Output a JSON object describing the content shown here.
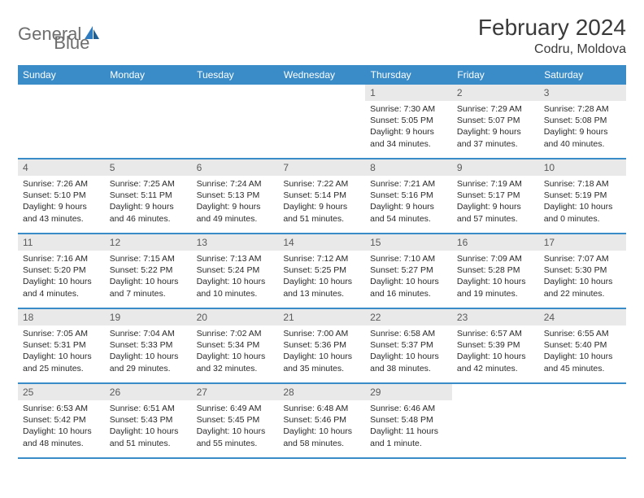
{
  "logo": {
    "text_a": "General",
    "text_b": "Blue"
  },
  "title": "February 2024",
  "location": "Codru, Moldova",
  "colors": {
    "header_bg": "#3a8cc9",
    "header_text": "#ffffff",
    "daynum_bg": "#e9e9e9",
    "daynum_text": "#5a5a5a",
    "body_text": "#2a2a2a",
    "border": "#3a8cc9",
    "logo_gray": "#6e6e6e",
    "logo_blue": "#2f7bbf"
  },
  "weekdays": [
    "Sunday",
    "Monday",
    "Tuesday",
    "Wednesday",
    "Thursday",
    "Friday",
    "Saturday"
  ],
  "weeks": [
    [
      null,
      null,
      null,
      null,
      {
        "n": "1",
        "sr": "Sunrise: 7:30 AM",
        "ss": "Sunset: 5:05 PM",
        "dl": "Daylight: 9 hours and 34 minutes."
      },
      {
        "n": "2",
        "sr": "Sunrise: 7:29 AM",
        "ss": "Sunset: 5:07 PM",
        "dl": "Daylight: 9 hours and 37 minutes."
      },
      {
        "n": "3",
        "sr": "Sunrise: 7:28 AM",
        "ss": "Sunset: 5:08 PM",
        "dl": "Daylight: 9 hours and 40 minutes."
      }
    ],
    [
      {
        "n": "4",
        "sr": "Sunrise: 7:26 AM",
        "ss": "Sunset: 5:10 PM",
        "dl": "Daylight: 9 hours and 43 minutes."
      },
      {
        "n": "5",
        "sr": "Sunrise: 7:25 AM",
        "ss": "Sunset: 5:11 PM",
        "dl": "Daylight: 9 hours and 46 minutes."
      },
      {
        "n": "6",
        "sr": "Sunrise: 7:24 AM",
        "ss": "Sunset: 5:13 PM",
        "dl": "Daylight: 9 hours and 49 minutes."
      },
      {
        "n": "7",
        "sr": "Sunrise: 7:22 AM",
        "ss": "Sunset: 5:14 PM",
        "dl": "Daylight: 9 hours and 51 minutes."
      },
      {
        "n": "8",
        "sr": "Sunrise: 7:21 AM",
        "ss": "Sunset: 5:16 PM",
        "dl": "Daylight: 9 hours and 54 minutes."
      },
      {
        "n": "9",
        "sr": "Sunrise: 7:19 AM",
        "ss": "Sunset: 5:17 PM",
        "dl": "Daylight: 9 hours and 57 minutes."
      },
      {
        "n": "10",
        "sr": "Sunrise: 7:18 AM",
        "ss": "Sunset: 5:19 PM",
        "dl": "Daylight: 10 hours and 0 minutes."
      }
    ],
    [
      {
        "n": "11",
        "sr": "Sunrise: 7:16 AM",
        "ss": "Sunset: 5:20 PM",
        "dl": "Daylight: 10 hours and 4 minutes."
      },
      {
        "n": "12",
        "sr": "Sunrise: 7:15 AM",
        "ss": "Sunset: 5:22 PM",
        "dl": "Daylight: 10 hours and 7 minutes."
      },
      {
        "n": "13",
        "sr": "Sunrise: 7:13 AM",
        "ss": "Sunset: 5:24 PM",
        "dl": "Daylight: 10 hours and 10 minutes."
      },
      {
        "n": "14",
        "sr": "Sunrise: 7:12 AM",
        "ss": "Sunset: 5:25 PM",
        "dl": "Daylight: 10 hours and 13 minutes."
      },
      {
        "n": "15",
        "sr": "Sunrise: 7:10 AM",
        "ss": "Sunset: 5:27 PM",
        "dl": "Daylight: 10 hours and 16 minutes."
      },
      {
        "n": "16",
        "sr": "Sunrise: 7:09 AM",
        "ss": "Sunset: 5:28 PM",
        "dl": "Daylight: 10 hours and 19 minutes."
      },
      {
        "n": "17",
        "sr": "Sunrise: 7:07 AM",
        "ss": "Sunset: 5:30 PM",
        "dl": "Daylight: 10 hours and 22 minutes."
      }
    ],
    [
      {
        "n": "18",
        "sr": "Sunrise: 7:05 AM",
        "ss": "Sunset: 5:31 PM",
        "dl": "Daylight: 10 hours and 25 minutes."
      },
      {
        "n": "19",
        "sr": "Sunrise: 7:04 AM",
        "ss": "Sunset: 5:33 PM",
        "dl": "Daylight: 10 hours and 29 minutes."
      },
      {
        "n": "20",
        "sr": "Sunrise: 7:02 AM",
        "ss": "Sunset: 5:34 PM",
        "dl": "Daylight: 10 hours and 32 minutes."
      },
      {
        "n": "21",
        "sr": "Sunrise: 7:00 AM",
        "ss": "Sunset: 5:36 PM",
        "dl": "Daylight: 10 hours and 35 minutes."
      },
      {
        "n": "22",
        "sr": "Sunrise: 6:58 AM",
        "ss": "Sunset: 5:37 PM",
        "dl": "Daylight: 10 hours and 38 minutes."
      },
      {
        "n": "23",
        "sr": "Sunrise: 6:57 AM",
        "ss": "Sunset: 5:39 PM",
        "dl": "Daylight: 10 hours and 42 minutes."
      },
      {
        "n": "24",
        "sr": "Sunrise: 6:55 AM",
        "ss": "Sunset: 5:40 PM",
        "dl": "Daylight: 10 hours and 45 minutes."
      }
    ],
    [
      {
        "n": "25",
        "sr": "Sunrise: 6:53 AM",
        "ss": "Sunset: 5:42 PM",
        "dl": "Daylight: 10 hours and 48 minutes."
      },
      {
        "n": "26",
        "sr": "Sunrise: 6:51 AM",
        "ss": "Sunset: 5:43 PM",
        "dl": "Daylight: 10 hours and 51 minutes."
      },
      {
        "n": "27",
        "sr": "Sunrise: 6:49 AM",
        "ss": "Sunset: 5:45 PM",
        "dl": "Daylight: 10 hours and 55 minutes."
      },
      {
        "n": "28",
        "sr": "Sunrise: 6:48 AM",
        "ss": "Sunset: 5:46 PM",
        "dl": "Daylight: 10 hours and 58 minutes."
      },
      {
        "n": "29",
        "sr": "Sunrise: 6:46 AM",
        "ss": "Sunset: 5:48 PM",
        "dl": "Daylight: 11 hours and 1 minute."
      },
      null,
      null
    ]
  ]
}
